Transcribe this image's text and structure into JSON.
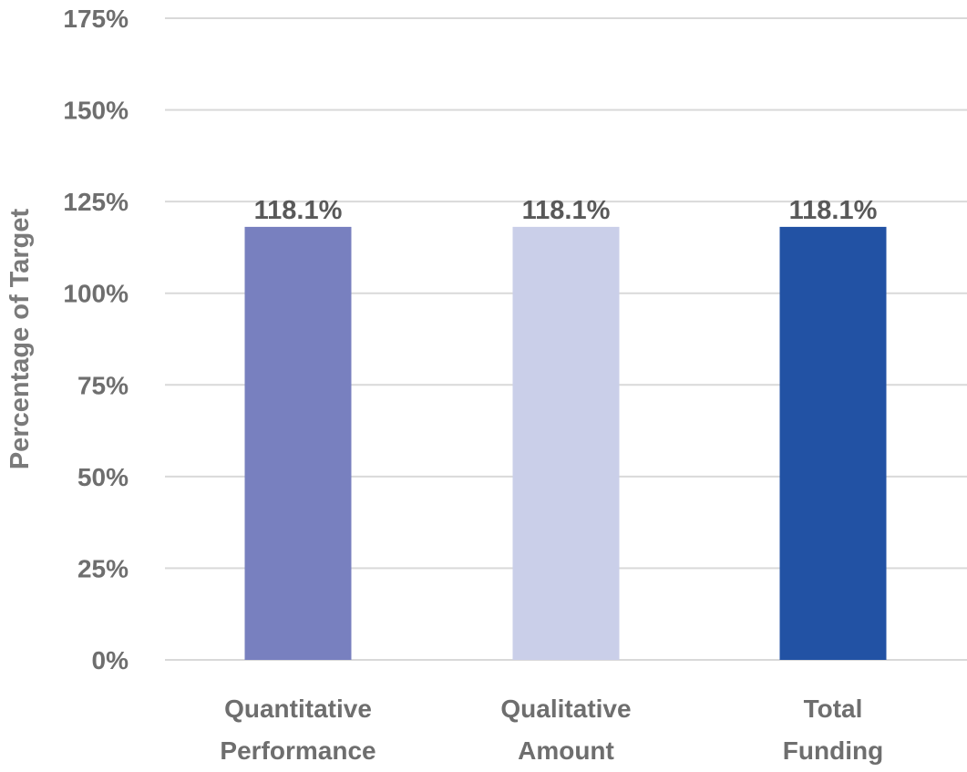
{
  "chart_data": {
    "type": "bar",
    "categories": [
      [
        "Quantitative",
        "Performance"
      ],
      [
        "Qualitative",
        "Amount"
      ],
      [
        "Total",
        "Funding"
      ]
    ],
    "values": [
      118.1,
      118.1,
      118.1
    ],
    "data_labels": [
      "118.1%",
      "118.1%",
      "118.1%"
    ],
    "bar_colors": [
      "#7880bf",
      "#cacfe9",
      "#2252a4"
    ],
    "title": "",
    "xlabel": "",
    "ylabel": "Percentage of Target",
    "ylim": [
      0,
      175
    ],
    "yticks": [
      0,
      25,
      50,
      75,
      100,
      125,
      150,
      175
    ],
    "ytick_labels": [
      "0%",
      "25%",
      "50%",
      "75%",
      "100%",
      "125%",
      "150%",
      "175%"
    ],
    "grid": true,
    "legend": "none"
  }
}
